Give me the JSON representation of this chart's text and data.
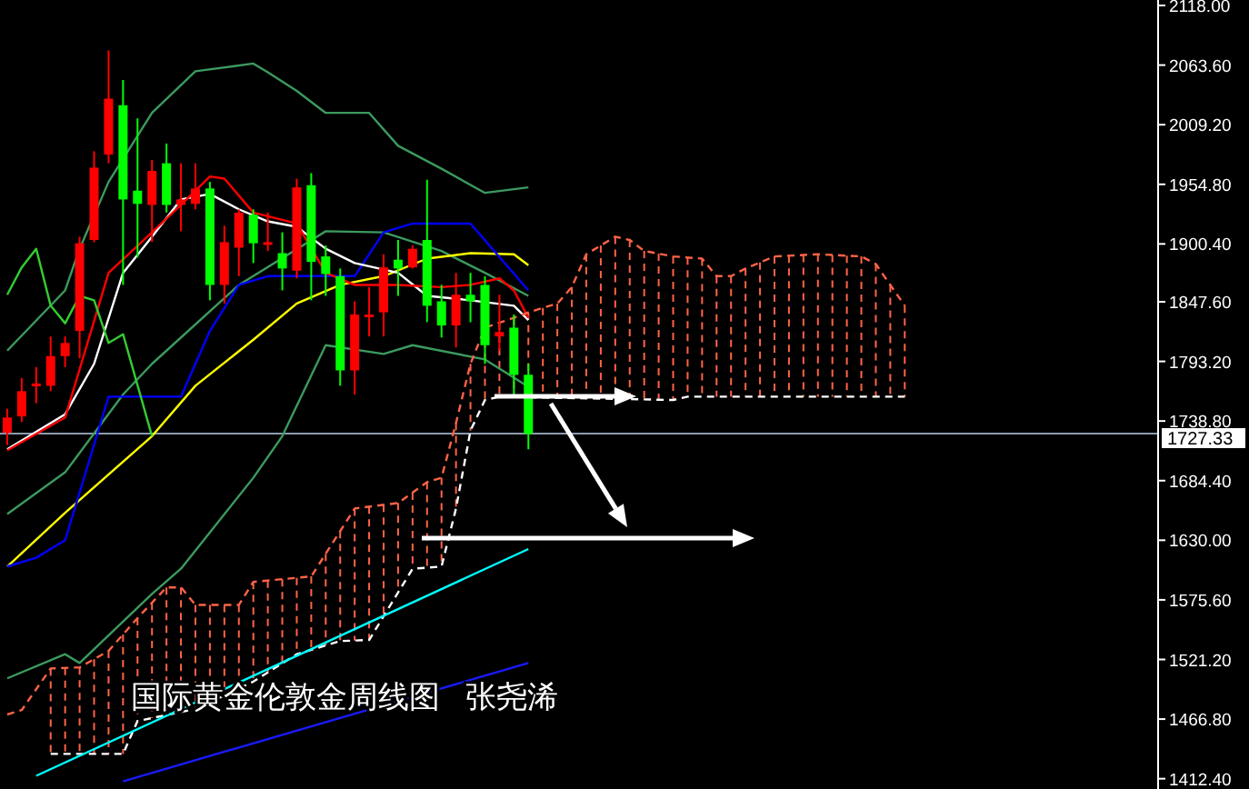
{
  "chart_data": {
    "type": "candlestick",
    "title": "国际黄金伦敦金周线图   张尧浠",
    "categories": [
      null,
      null,
      null,
      null,
      null,
      null,
      null,
      null,
      null,
      null,
      null,
      null,
      null,
      null,
      null,
      null,
      null,
      null,
      null,
      null,
      null,
      null,
      null,
      null,
      null,
      null,
      null,
      null,
      null,
      null,
      null,
      null,
      null,
      null,
      null,
      null,
      null,
      null,
      null,
      null,
      null,
      null,
      null,
      null,
      null,
      null,
      null,
      null,
      null,
      null,
      null,
      null,
      null,
      null,
      null,
      null,
      null,
      null,
      null,
      null,
      null,
      null,
      null,
      null,
      null,
      null,
      null,
      null,
      null,
      null,
      null,
      null,
      null,
      null,
      null,
      null,
      null,
      null,
      null,
      null
    ],
    "ohlc": [
      [
        1728,
        1750,
        1717,
        1742
      ],
      [
        1743,
        1778,
        1738,
        1766
      ],
      [
        1772,
        1788,
        1755,
        1773
      ],
      [
        1771,
        1816,
        1766,
        1798
      ],
      [
        1798,
        1816,
        1788,
        1810
      ],
      [
        1821,
        1907,
        1796,
        1901
      ],
      [
        1904,
        1985,
        1902,
        1970
      ],
      [
        1982,
        2077,
        1974,
        2033
      ],
      [
        2027,
        2050,
        1863,
        1941
      ],
      [
        1949,
        2015,
        1888,
        1937
      ],
      [
        1936,
        1977,
        1902,
        1967
      ],
      [
        1974,
        1992,
        1929,
        1936
      ],
      [
        1936,
        1974,
        1912,
        1941
      ],
      [
        1937,
        1974,
        1932,
        1951
      ],
      [
        1951,
        1957,
        1849,
        1863
      ],
      [
        1863,
        1917,
        1846,
        1902
      ],
      [
        1897,
        1932,
        1871,
        1929
      ],
      [
        1927,
        1932,
        1883,
        1901
      ],
      [
        1901,
        1929,
        1894,
        1902
      ],
      [
        1892,
        1911,
        1858,
        1878
      ],
      [
        1876,
        1960,
        1869,
        1952
      ],
      [
        1954,
        1965,
        1849,
        1884
      ],
      [
        1889,
        1899,
        1853,
        1873
      ],
      [
        1871,
        1878,
        1771,
        1785
      ],
      [
        1785,
        1848,
        1763,
        1836
      ],
      [
        1835,
        1861,
        1816,
        1836
      ],
      [
        1838,
        1891,
        1816,
        1879
      ],
      [
        1886,
        1904,
        1853,
        1878
      ],
      [
        1879,
        1899,
        1878,
        1896
      ],
      [
        1904,
        1959,
        1829,
        1844
      ],
      [
        1848,
        1863,
        1815,
        1826
      ],
      [
        1826,
        1874,
        1806,
        1854
      ],
      [
        1854,
        1874,
        1829,
        1848
      ],
      [
        1863,
        1871,
        1791,
        1808
      ],
      [
        1816,
        1854,
        1803,
        1820
      ],
      [
        1824,
        1836,
        1763,
        1781
      ],
      [
        1781,
        1791,
        1713,
        1727
      ],
      null,
      null,
      null,
      null,
      null,
      null,
      null,
      null,
      null,
      null,
      null,
      null,
      null,
      null,
      null,
      null,
      null,
      null,
      null,
      null,
      null,
      null,
      null,
      null,
      null,
      null,
      null,
      null,
      null,
      null,
      null,
      null,
      null,
      null,
      null,
      null,
      null,
      null,
      null,
      null,
      null,
      null,
      null
    ],
    "colors": [
      "#ff0000",
      "#ff0000",
      "#ff0000",
      "#ff0000",
      "#ff0000",
      "#ff0000",
      "#ff0000",
      "#ff0000",
      "#00ff00",
      "#00ff00",
      "#ff0000",
      "#00ff00",
      "#ff0000",
      "#ff0000",
      "#00ff00",
      "#ff0000",
      "#ff0000",
      "#00ff00",
      "#ff0000",
      "#00ff00",
      "#ff0000",
      "#00ff00",
      "#00ff00",
      "#00ff00",
      "#ff0000",
      "#ff0000",
      "#ff0000",
      "#00ff00",
      "#ff0000",
      "#00ff00",
      "#00ff00",
      "#ff0000",
      "#00ff00",
      "#00ff00",
      "#ff0000",
      "#00ff00",
      "#00ff00",
      null,
      null,
      null,
      null,
      null,
      null,
      null,
      null,
      null,
      null,
      null,
      null,
      null,
      null,
      null,
      null,
      null,
      null,
      null,
      null,
      null,
      null,
      null,
      null,
      null,
      null,
      null,
      null,
      null,
      null,
      null,
      null,
      null,
      null,
      null,
      null,
      null,
      null,
      null,
      null,
      null,
      null,
      null
    ],
    "series": [
      {
        "type": "line",
        "color": "#3c9a5f",
        "values": [
          1803,
          null,
          null,
          null,
          1858,
          1896,
          null,
          1957,
          null,
          null,
          2020,
          null,
          null,
          2058,
          null,
          null,
          null,
          2065,
          2057,
          null,
          2040,
          null,
          2020,
          null,
          null,
          2020,
          null,
          1990,
          null,
          null,
          1969,
          null,
          null,
          1947,
          null,
          null,
          1952,
          null,
          null,
          null,
          null,
          null,
          null,
          null,
          null,
          null,
          null,
          null,
          null,
          null,
          null,
          null,
          null,
          null,
          null,
          null,
          null,
          null,
          null,
          null,
          null,
          null,
          null,
          null,
          null,
          null,
          null,
          null,
          null,
          null,
          null,
          null,
          null,
          null,
          null,
          null,
          null,
          null,
          null,
          null
        ]
      },
      {
        "type": "line",
        "color": "#3c9a5f",
        "values": [
          1654,
          null,
          null,
          null,
          1692,
          null,
          null,
          null,
          1763,
          null,
          1791,
          null,
          null,
          null,
          null,
          null,
          1863,
          null,
          null,
          null,
          null,
          null,
          1912,
          null,
          null,
          null,
          1911,
          null,
          null,
          null,
          1894,
          null,
          null,
          1874,
          null,
          null,
          1853,
          null,
          null,
          null,
          null,
          null,
          null,
          null,
          null,
          null,
          null,
          null,
          null,
          null,
          null,
          null,
          null,
          null,
          null,
          null,
          null,
          null,
          null,
          null,
          null,
          null,
          null,
          null,
          null,
          null,
          null,
          null,
          null,
          null,
          null,
          null,
          null,
          null,
          null,
          null,
          null,
          null,
          null,
          null
        ]
      },
      {
        "type": "line",
        "color": "#3c9a5f",
        "values": [
          1504,
          null,
          null,
          null,
          1526,
          1518,
          null,
          null,
          null,
          null,
          1581,
          null,
          1604,
          null,
          null,
          null,
          null,
          1687,
          null,
          1725,
          null,
          null,
          1808,
          null,
          null,
          null,
          1800,
          null,
          1808,
          null,
          null,
          null,
          null,
          1795,
          null,
          null,
          1770,
          null,
          null,
          null,
          null,
          null,
          null,
          null,
          null,
          null,
          null,
          null,
          null,
          null,
          null,
          null,
          null,
          null,
          null,
          null,
          null,
          null,
          null,
          null,
          null,
          null,
          null,
          null,
          null,
          null,
          null,
          null,
          null,
          null,
          null,
          null,
          null,
          null,
          null,
          null,
          null,
          null,
          null,
          null
        ]
      },
      {
        "type": "line",
        "color": "#ffff00",
        "values": [
          1606,
          null,
          null,
          null,
          1655,
          null,
          null,
          null,
          null,
          null,
          1725,
          null,
          null,
          1771,
          null,
          null,
          null,
          1813,
          null,
          null,
          1846,
          null,
          null,
          1863,
          null,
          null,
          1871,
          null,
          null,
          1887,
          null,
          null,
          1892,
          null,
          null,
          1891,
          1881,
          null,
          null,
          null,
          null,
          null,
          null,
          null,
          null,
          null,
          null,
          null,
          null,
          null,
          null,
          null,
          null,
          null,
          null,
          null,
          null,
          null,
          null,
          null,
          null,
          null,
          null,
          null,
          null,
          null,
          null,
          null,
          null,
          null,
          null,
          null,
          null,
          null,
          null,
          null,
          null,
          null,
          null,
          null
        ]
      },
      {
        "type": "line",
        "color": "#0000ff",
        "values": [
          1606,
          null,
          1614,
          null,
          1630,
          null,
          null,
          1761,
          null,
          null,
          null,
          null,
          1761,
          null,
          1821,
          null,
          1863,
          null,
          1871,
          null,
          null,
          null,
          null,
          null,
          1871,
          null,
          1911,
          null,
          1919,
          null,
          null,
          null,
          1919,
          null,
          null,
          null,
          1858,
          null,
          null,
          null,
          null,
          null,
          null,
          null,
          null,
          null,
          null,
          null,
          null,
          null,
          null,
          null,
          null,
          null,
          null,
          null,
          null,
          null,
          null,
          null,
          null,
          null,
          null,
          null,
          null,
          null,
          null,
          null,
          null,
          null,
          null,
          null,
          null,
          null,
          null,
          null,
          null,
          null,
          null,
          null
        ]
      },
      {
        "type": "line",
        "color": "#ffffff",
        "values": [
          1713,
          null,
          null,
          null,
          1745,
          null,
          1791,
          null,
          1874,
          null,
          1907,
          null,
          1941,
          null,
          1946,
          null,
          1932,
          null,
          1921,
          null,
          1916,
          null,
          1896,
          null,
          1883,
          null,
          null,
          1874,
          null,
          1853,
          null,
          null,
          1849,
          null,
          null,
          1844,
          1831,
          null,
          null,
          null,
          null,
          null,
          null,
          null,
          null,
          null,
          null,
          null,
          null,
          null,
          null,
          null,
          null,
          null,
          null,
          null,
          null,
          null,
          null,
          null,
          null,
          null,
          null,
          null,
          null,
          null,
          null,
          null,
          null,
          null,
          null,
          null,
          null,
          null,
          null,
          null,
          null,
          null,
          null,
          null
        ]
      },
      {
        "type": "line",
        "color": "#ff0000",
        "values": [
          1712,
          null,
          null,
          null,
          1742,
          null,
          null,
          1874,
          null,
          null,
          1911,
          null,
          1936,
          null,
          1962,
          1960,
          null,
          1929,
          null,
          null,
          1919,
          null,
          1874,
          null,
          1863,
          null,
          null,
          1863,
          null,
          null,
          1861,
          null,
          1863,
          null,
          1869,
          1858,
          1833,
          null,
          null,
          null,
          null,
          null,
          null,
          null,
          null,
          null,
          null,
          null,
          null,
          null,
          null,
          null,
          null,
          null,
          null,
          null,
          null,
          null,
          null,
          null,
          null,
          null,
          null,
          null,
          null,
          null,
          null,
          null,
          null,
          null,
          null,
          null,
          null,
          null,
          null,
          null,
          null,
          null,
          null,
          null
        ]
      },
      {
        "type": "line",
        "color": "#33cc33",
        "values": [
          1854,
          1879,
          1896,
          1844,
          1828,
          1853,
          1849,
          1810,
          1818,
          null,
          1725,
          null,
          null,
          null,
          null,
          null,
          null,
          null,
          null,
          null,
          null,
          null,
          null,
          null,
          null,
          null,
          null,
          null,
          null,
          null,
          null,
          null,
          null,
          null,
          null,
          null,
          null,
          null,
          null,
          null,
          null,
          null,
          null,
          null,
          null,
          null,
          null,
          null,
          null,
          null,
          null,
          null,
          null,
          null,
          null,
          null,
          null,
          null,
          null,
          null,
          null,
          null,
          null,
          null,
          null,
          null,
          null,
          null,
          null,
          null,
          null,
          null,
          null,
          null,
          null,
          null,
          null,
          null,
          null,
          null
        ]
      },
      {
        "type": "line",
        "color": "#ff6347",
        "line_style": "dashed",
        "values": [
          1471,
          1475,
          null,
          1513,
          null,
          1514,
          null,
          1529,
          null,
          1559,
          null,
          1587,
          1587,
          1571,
          null,
          null,
          1571,
          1592,
          null,
          null,
          null,
          1597,
          null,
          null,
          1659,
          null,
          null,
          1664,
          null,
          1683,
          1687,
          1737,
          1791,
          1824,
          null,
          1833,
          1838,
          null,
          1846,
          1861,
          1891,
          null,
          1907,
          1904,
          1894,
          null,
          1889,
          null,
          1887,
          1871,
          1871,
          1878,
          null,
          1889,
          null,
          null,
          1891,
          null,
          null,
          1889,
          1882,
          1863,
          1844,
          null,
          null,
          null,
          null,
          null,
          null,
          null,
          null,
          null,
          null,
          null,
          null,
          null,
          null,
          null,
          null,
          null
        ]
      },
      {
        "type": "line",
        "color": "#ffffff",
        "line_style": "dashed",
        "values": [
          null,
          null,
          null,
          1435,
          null,
          null,
          null,
          null,
          1435,
          1465,
          null,
          null,
          null,
          1476,
          null,
          null,
          null,
          1501,
          null,
          null,
          1526,
          null,
          null,
          1538,
          null,
          1539,
          null,
          null,
          1604,
          null,
          1606,
          1659,
          1730,
          1758,
          1761,
          null,
          null,
          null,
          null,
          null,
          null,
          null,
          null,
          null,
          null,
          null,
          1758,
          1761,
          null,
          null,
          null,
          null,
          null,
          null,
          null,
          null,
          null,
          null,
          null,
          null,
          null,
          null,
          1761,
          null,
          null,
          null,
          null,
          null,
          null,
          null,
          null,
          null,
          null,
          null,
          null,
          null,
          null,
          null,
          null,
          null
        ]
      },
      {
        "type": "line",
        "color": "#00ffff",
        "values": [
          null,
          null,
          1415,
          null,
          null,
          null,
          null,
          null,
          null,
          null,
          null,
          null,
          null,
          null,
          null,
          null,
          null,
          null,
          null,
          null,
          null,
          null,
          null,
          null,
          null,
          null,
          null,
          null,
          null,
          null,
          null,
          null,
          null,
          null,
          null,
          null,
          1622,
          null,
          null,
          null,
          null,
          null,
          null,
          null,
          null,
          null,
          null,
          null,
          null,
          null,
          null,
          null,
          null,
          null,
          null,
          null,
          null,
          null,
          null,
          null,
          null,
          null,
          null,
          null,
          null,
          null,
          null,
          null,
          null,
          null,
          null,
          null,
          null,
          null,
          null,
          null,
          null,
          null,
          null,
          null
        ]
      },
      {
        "type": "line",
        "color": "#1a1aff",
        "values": [
          null,
          null,
          null,
          null,
          null,
          null,
          null,
          null,
          1410,
          null,
          null,
          null,
          null,
          null,
          null,
          null,
          null,
          null,
          null,
          null,
          null,
          null,
          null,
          null,
          null,
          null,
          null,
          null,
          null,
          null,
          null,
          null,
          null,
          null,
          null,
          null,
          1518,
          null,
          null,
          null,
          null,
          null,
          null,
          null,
          null,
          null,
          null,
          null,
          null,
          null,
          null,
          null,
          null,
          null,
          null,
          null,
          null,
          null,
          null,
          null,
          null,
          null,
          null,
          null,
          null,
          null,
          null,
          null,
          null,
          null,
          null,
          null,
          null,
          null,
          null,
          null,
          null,
          null,
          null,
          null
        ]
      }
    ],
    "ylim": [
      1403,
      2123
    ],
    "yticks": [
      {
        "value": 2118,
        "label": "2118.00"
      },
      {
        "value": 2063.6,
        "label": "2063.60"
      },
      {
        "value": 2009.2,
        "label": "2009.20"
      },
      {
        "value": 1954.8,
        "label": "1954.80"
      },
      {
        "value": 1900.4,
        "label": "1900.40"
      },
      {
        "value": 1847.6,
        "label": "1847.60"
      },
      {
        "value": 1793.2,
        "label": "1793.20"
      },
      {
        "value": 1738.8,
        "label": "1738.80"
      },
      {
        "value": 1684.4,
        "label": "1684.40"
      },
      {
        "value": 1630,
        "label": "1630.00"
      },
      {
        "value": 1575.6,
        "label": "1575.60"
      },
      {
        "value": 1521.2,
        "label": "1521.20"
      },
      {
        "value": 1466.8,
        "label": "1466.80"
      },
      {
        "value": 1412.4,
        "label": "1412.40"
      }
    ],
    "ref_lines": [
      {
        "axis": "y",
        "value": 1727.33,
        "label": "1727.33",
        "color": "#8c9bb0"
      }
    ],
    "tick_labels": "y",
    "grid": false
  }
}
